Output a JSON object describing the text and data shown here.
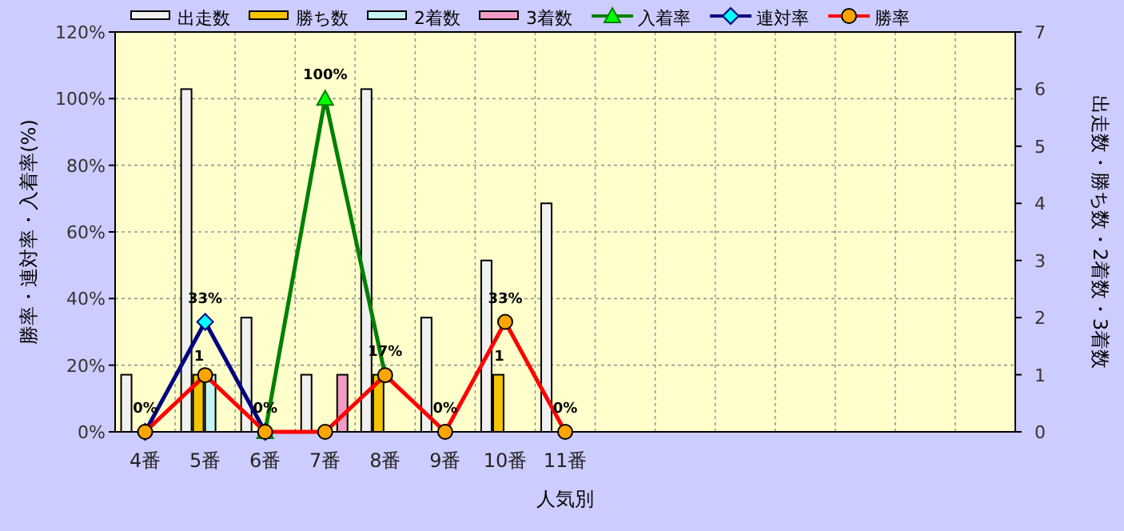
{
  "chart_data": {
    "type": "bar",
    "categories": [
      "4番",
      "5番",
      "6番",
      "7番",
      "8番",
      "9番",
      "10番",
      "11番",
      null,
      null,
      null,
      null,
      null,
      null,
      null
    ],
    "xlabel": "人気別",
    "ylabel": "勝率・連対率・入着率(%)",
    "y2label": "出走数・勝ち数・2着数・3着数",
    "ylim": [
      0,
      120
    ],
    "yticks": [
      {
        "value": 0,
        "label": "0%"
      },
      {
        "value": 20,
        "label": "20%"
      },
      {
        "value": 40,
        "label": "40%"
      },
      {
        "value": 60,
        "label": "60%"
      },
      {
        "value": 80,
        "label": "80%"
      },
      {
        "value": 100,
        "label": "100%"
      },
      {
        "value": 120,
        "label": "120%"
      }
    ],
    "y2lim": [
      0,
      7
    ],
    "y2ticks": [
      0,
      1,
      2,
      3,
      4,
      5,
      6,
      7
    ],
    "grid": true,
    "legend": "top",
    "series": [
      {
        "name": "出走数",
        "axis": "y2",
        "color": "#f0f0f0",
        "values": [
          1,
          6,
          2,
          1,
          6,
          2,
          3,
          4,
          null,
          null,
          null,
          null,
          null,
          null,
          null
        ]
      },
      {
        "name": "勝ち数",
        "axis": "y2",
        "color": "#f5c400",
        "values": [
          0,
          1,
          0,
          0,
          1,
          0,
          1,
          0,
          null,
          null,
          null,
          null,
          null,
          null,
          null
        ],
        "value_labels": [
          null,
          "1",
          null,
          null,
          null,
          null,
          "1",
          null,
          null,
          null,
          null,
          null,
          null,
          null,
          null
        ]
      },
      {
        "name": "2着数",
        "axis": "y2",
        "color": "#c4f4f4",
        "values": [
          0,
          1,
          0,
          0,
          0,
          0,
          0,
          0,
          null,
          null,
          null,
          null,
          null,
          null,
          null
        ]
      },
      {
        "name": "3着数",
        "axis": "y2",
        "color": "#f09cc4",
        "values": [
          0,
          0,
          0,
          1,
          0,
          0,
          0,
          0,
          null,
          null,
          null,
          null,
          null,
          null,
          null
        ]
      },
      {
        "name": "入着率",
        "type": "line",
        "axis": "y",
        "color": "#008000",
        "marker": "triangle",
        "values": [
          null,
          null,
          0,
          100,
          17,
          null,
          null,
          null,
          null,
          null,
          null,
          null,
          null,
          null,
          null
        ],
        "value_labels": [
          null,
          null,
          "0%",
          "100%",
          "17%",
          null,
          null,
          null,
          null,
          null,
          null,
          null,
          null,
          null,
          null
        ]
      },
      {
        "name": "連対率",
        "type": "line",
        "axis": "y",
        "color": "#000080",
        "marker": "diamond",
        "values": [
          0,
          33,
          0,
          null,
          null,
          null,
          null,
          null,
          null,
          null,
          null,
          null,
          null,
          null,
          null
        ],
        "value_labels": [
          null,
          "33%",
          null,
          null,
          null,
          null,
          null,
          null,
          null,
          null,
          null,
          null,
          null,
          null,
          null
        ]
      },
      {
        "name": "勝率",
        "type": "line",
        "axis": "y",
        "color": "#ff0000",
        "marker": "circle",
        "values": [
          0,
          17,
          0,
          0,
          17,
          0,
          33,
          0,
          null,
          null,
          null,
          null,
          null,
          null,
          null
        ],
        "value_labels": [
          "0%",
          null,
          null,
          null,
          null,
          "0%",
          "33%",
          "0%",
          null,
          null,
          null,
          null,
          null,
          null,
          null
        ]
      }
    ]
  }
}
